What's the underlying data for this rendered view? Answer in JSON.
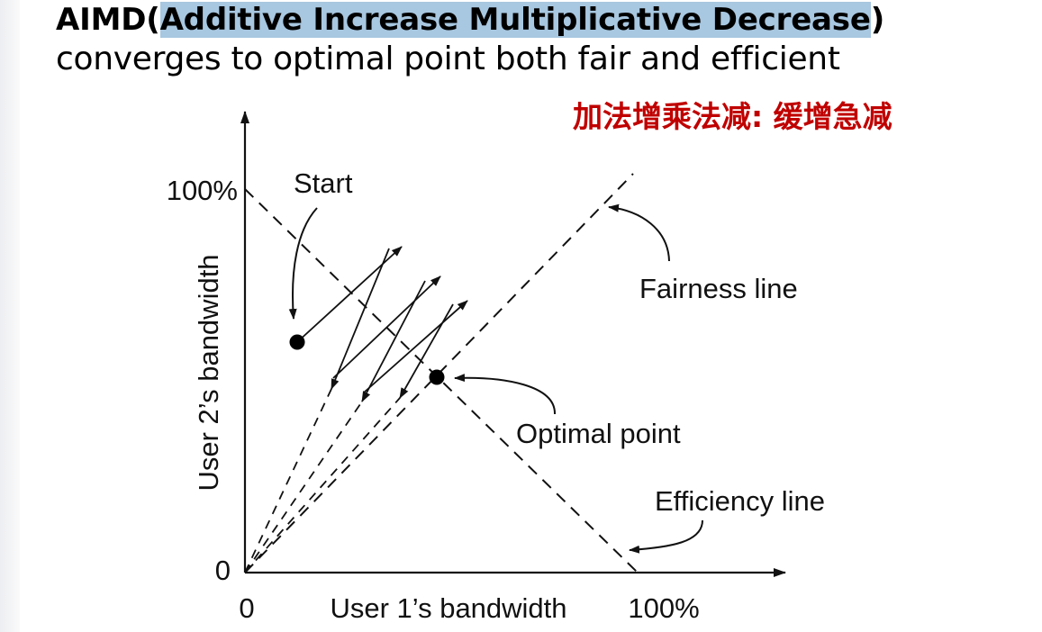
{
  "slide": {
    "title_prefix": "AIMD(",
    "title_highlight": "Additive Increase Multiplicative Decrease",
    "title_suffix": ")",
    "subtitle": "converges to optimal point both fair and efficient",
    "chinese_note": "加法增乘法减: 缓增急减",
    "accent_color": "#c00000",
    "highlight_color": "#a8c7e0"
  },
  "diagram": {
    "y_axis_label": "User 2’s bandwidth",
    "x_axis_label": "User 1’s bandwidth",
    "y_max_label": "100%",
    "x_max_label": "100%",
    "y_origin_label": "0",
    "x_origin_label": "0",
    "start_label": "Start",
    "fairness_label": "Fairness line",
    "optimal_label": "Optimal point",
    "efficiency_label": "Efficiency line"
  }
}
